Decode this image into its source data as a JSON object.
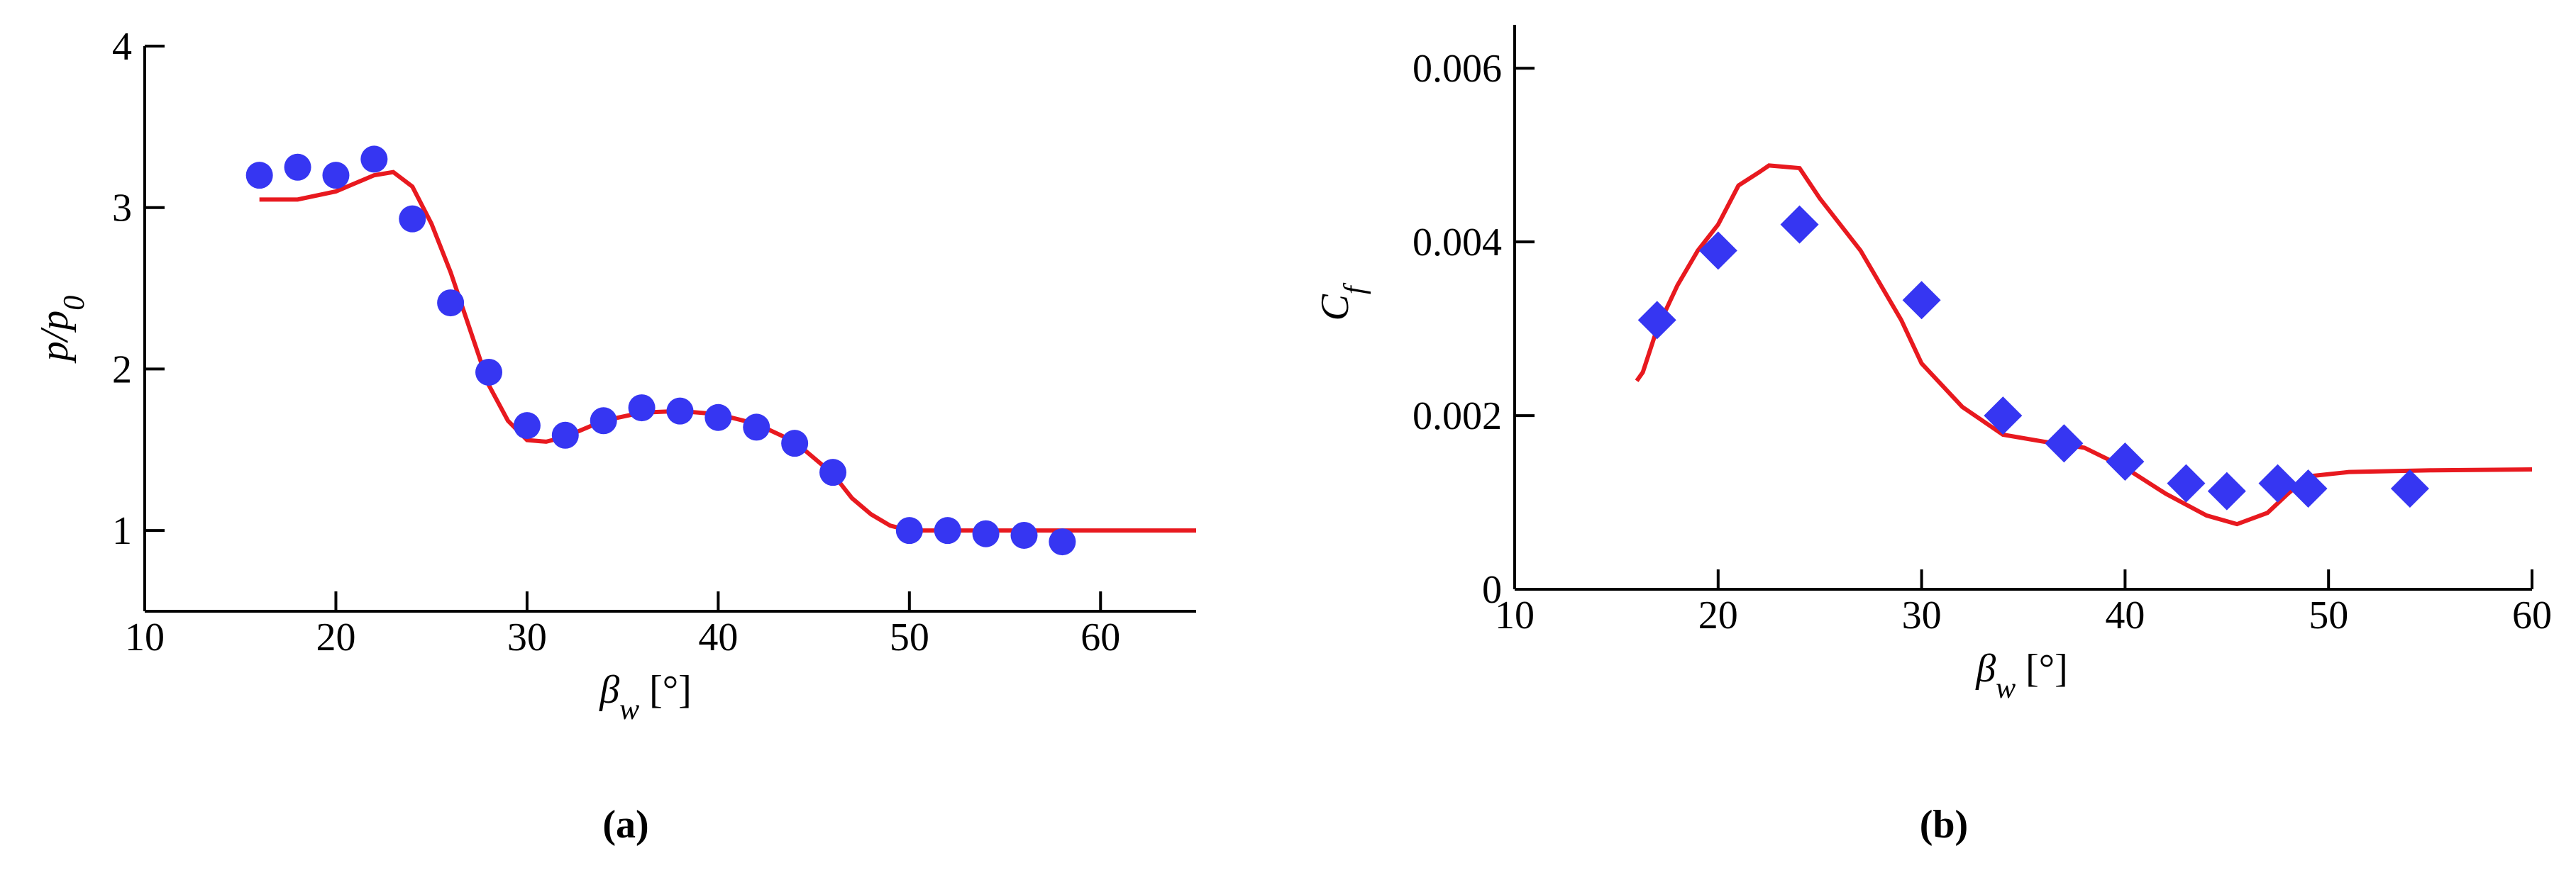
{
  "chart_data": [
    {
      "type": "scatter",
      "caption": "(a)",
      "xlabel": {
        "text": "β",
        "sub": "w",
        "suffix": " [°]"
      },
      "ylabel": {
        "text": "p/p",
        "sub": "0"
      },
      "xlim": [
        10,
        65
      ],
      "xticks": [
        10,
        20,
        30,
        40,
        50,
        60
      ],
      "ylim": [
        0.5,
        4
      ],
      "yticks": [
        1,
        2,
        3,
        4
      ],
      "series": [
        {
          "type": "line",
          "color": "#e8191f",
          "x": [
            16,
            18,
            20,
            22,
            23,
            24,
            25,
            26,
            27,
            28,
            29,
            30,
            31,
            32,
            34,
            36,
            38,
            40,
            42,
            44,
            46,
            47,
            48,
            49,
            50,
            55,
            60,
            65
          ],
          "values": [
            3.05,
            3.05,
            3.1,
            3.2,
            3.22,
            3.13,
            2.9,
            2.6,
            2.25,
            1.9,
            1.68,
            1.56,
            1.55,
            1.58,
            1.68,
            1.73,
            1.74,
            1.72,
            1.66,
            1.55,
            1.35,
            1.2,
            1.1,
            1.03,
            1.0,
            1.0,
            1.0,
            1.0
          ]
        },
        {
          "type": "scatter",
          "marker": "circle",
          "color": "#3636f2",
          "x": [
            16,
            18,
            20,
            22,
            24,
            26,
            28,
            30,
            32,
            34,
            36,
            38,
            40,
            42,
            44,
            46,
            50,
            52,
            54,
            56,
            58
          ],
          "values": [
            3.2,
            3.25,
            3.2,
            3.3,
            2.93,
            2.41,
            1.98,
            1.65,
            1.59,
            1.68,
            1.76,
            1.74,
            1.7,
            1.64,
            1.54,
            1.36,
            1.0,
            1.0,
            0.98,
            0.97,
            0.93
          ]
        }
      ]
    },
    {
      "type": "scatter",
      "caption": "(b)",
      "xlabel": {
        "text": "β",
        "sub": "w",
        "suffix": " [°]"
      },
      "ylabel": {
        "text": "C",
        "sub": "f"
      },
      "xlim": [
        10,
        60
      ],
      "xticks": [
        10,
        20,
        30,
        40,
        50,
        60
      ],
      "ylim": [
        0,
        0.0065
      ],
      "yticks": [
        0,
        0.002,
        0.004,
        0.006
      ],
      "series": [
        {
          "type": "line",
          "color": "#e8191f",
          "x": [
            16,
            16.3,
            17,
            18,
            19,
            20,
            21,
            22,
            22.5,
            24,
            25,
            27,
            29,
            30,
            32,
            34,
            36,
            38,
            40,
            42,
            44,
            45.5,
            47,
            48,
            49,
            51,
            55,
            60
          ],
          "values": [
            0.0024,
            0.0025,
            0.003,
            0.0035,
            0.0039,
            0.0042,
            0.00465,
            0.0048,
            0.00488,
            0.00485,
            0.0045,
            0.0039,
            0.0031,
            0.0026,
            0.0021,
            0.00178,
            0.0017,
            0.00163,
            0.0014,
            0.0011,
            0.00085,
            0.00075,
            0.00088,
            0.0011,
            0.0013,
            0.00135,
            0.00137,
            0.00138
          ]
        },
        {
          "type": "scatter",
          "marker": "diamond",
          "color": "#3636f2",
          "x": [
            17,
            20,
            24,
            30,
            34,
            37,
            40,
            43,
            45,
            47.5,
            49,
            54
          ],
          "values": [
            0.0031,
            0.0039,
            0.0042,
            0.00333,
            0.002,
            0.00168,
            0.00147,
            0.00122,
            0.00113,
            0.00122,
            0.00116,
            0.00116
          ]
        }
      ]
    }
  ]
}
